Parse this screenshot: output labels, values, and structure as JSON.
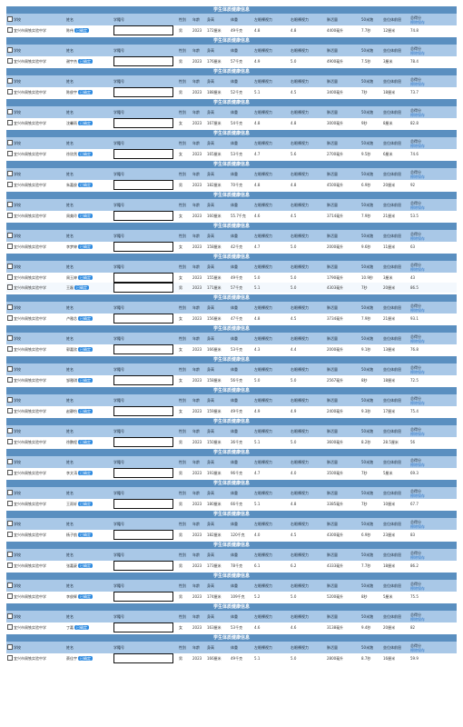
{
  "title": "学生体质健康信息",
  "headers": {
    "school": "学校",
    "name": "姓名",
    "idno": "学籍号",
    "gender": "性别",
    "age": "年龄",
    "height": "身高",
    "weight": "体重",
    "vis_l": "左眼裸视力",
    "vis_r": "右眼裸视力",
    "lung": "肺活量",
    "run50": "50米跑",
    "jump": "坐位体前屈",
    "total": "总得分",
    "link": "擦除保存"
  },
  "badge": "已确定",
  "blocks": [
    {
      "rows": [
        {
          "school": "宜兴市周铁实验中学",
          "name": "陈伟",
          "gender": "男",
          "age": "2023",
          "height": "172厘米",
          "weight": "49千克",
          "vl": "4.8",
          "vr": "4.8",
          "lung": "4400毫升",
          "run": "7.7秒",
          "jump": "12厘米",
          "total": "74.8"
        }
      ]
    },
    {
      "rows": [
        {
          "school": "宜兴市周铁实验中学",
          "name": "谢宇杰",
          "gender": "男",
          "age": "2023",
          "height": "176厘米",
          "weight": "57千克",
          "vl": "4.9",
          "vr": "5.0",
          "lung": "4900毫升",
          "run": "7.5秒",
          "jump": "3厘米",
          "total": "78.4"
        }
      ]
    },
    {
      "rows": [
        {
          "school": "宜兴市周铁实验中学",
          "name": "陈俊宇",
          "gender": "男",
          "age": "2023",
          "height": "188厘米",
          "weight": "52千克",
          "vl": "5.1",
          "vr": "4.5",
          "lung": "3400毫升",
          "run": "7秒",
          "jump": "18厘米",
          "total": "73.7"
        }
      ]
    },
    {
      "rows": [
        {
          "school": "宜兴市周铁实验中学",
          "name": "沈馨雨",
          "gender": "女",
          "age": "2023",
          "height": "167厘米",
          "weight": "54千克",
          "vl": "4.8",
          "vr": "4.8",
          "lung": "3000毫升",
          "run": "9秒",
          "jump": "8厘米",
          "total": "82.8"
        }
      ]
    },
    {
      "rows": [
        {
          "school": "宜兴市周铁实验中学",
          "name": "徐欣然",
          "gender": "女",
          "age": "2023",
          "height": "165厘米",
          "weight": "53千克",
          "vl": "4.7",
          "vr": "5.6",
          "lung": "2700毫升",
          "run": "9.5秒",
          "jump": "6厘米",
          "total": "74.6"
        }
      ]
    },
    {
      "rows": [
        {
          "school": "宜兴市周铁实验中学",
          "name": "朱嘉俊",
          "gender": "男",
          "age": "2023",
          "height": "182厘米",
          "weight": "70千克",
          "vl": "4.8",
          "vr": "4.8",
          "lung": "4500毫升",
          "run": "6.9秒",
          "jump": "20厘米",
          "total": "92"
        }
      ]
    },
    {
      "rows": [
        {
          "school": "宜兴市周铁实验中学",
          "name": "周美玲",
          "gender": "女",
          "age": "2023",
          "height": "160厘米",
          "weight": "55.7千克",
          "vl": "4.6",
          "vr": "4.5",
          "lung": "3714毫升",
          "run": "7.9秒",
          "jump": "21厘米",
          "total": "53.5"
        }
      ]
    },
    {
      "rows": [
        {
          "school": "宜兴市周铁实验中学",
          "name": "李梦婷",
          "gender": "女",
          "age": "2023",
          "height": "158厘米",
          "weight": "42千克",
          "vl": "4.7",
          "vr": "5.0",
          "lung": "2000毫升",
          "run": "9.6秒",
          "jump": "11厘米",
          "total": "63"
        }
      ]
    },
    {
      "rows": [
        {
          "school": "宜兴市周铁实验中学",
          "name": "周玉婷",
          "gender": "女",
          "age": "2023",
          "height": "155厘米",
          "weight": "49千克",
          "vl": "5.0",
          "vr": "5.0",
          "lung": "1790毫升",
          "run": "10.9秒",
          "jump": "3厘米",
          "total": "43"
        },
        {
          "school": "宜兴市周铁实验中学",
          "name": "王磊",
          "gender": "男",
          "age": "2023",
          "height": "171厘米",
          "weight": "57千克",
          "vl": "5.1",
          "vr": "5.0",
          "lung": "4303毫升",
          "run": "7秒",
          "jump": "20厘米",
          "total": "86.5"
        }
      ]
    },
    {
      "rows": [
        {
          "school": "宜兴市周铁实验中学",
          "name": "卢雅芯",
          "gender": "女",
          "age": "2023",
          "height": "156厘米",
          "weight": "47千克",
          "vl": "4.8",
          "vr": "4.5",
          "lung": "3734毫升",
          "run": "7.9秒",
          "jump": "21厘米",
          "total": "93.1"
        }
      ]
    },
    {
      "rows": [
        {
          "school": "宜兴市周铁实验中学",
          "name": "郭嘉欣",
          "gender": "女",
          "age": "2023",
          "height": "166厘米",
          "weight": "53千克",
          "vl": "4.3",
          "vr": "4.4",
          "lung": "2000毫升",
          "run": "9.1秒",
          "jump": "13厘米",
          "total": "76.8"
        }
      ]
    },
    {
      "rows": [
        {
          "school": "宜兴市周铁实验中学",
          "name": "邹雅琪",
          "gender": "女",
          "age": "2023",
          "height": "158厘米",
          "weight": "56千克",
          "vl": "5.0",
          "vr": "5.0",
          "lung": "2567毫升",
          "run": "8秒",
          "jump": "18厘米",
          "total": "72.5"
        }
      ]
    },
    {
      "rows": [
        {
          "school": "宜兴市周铁实验中学",
          "name": "赵静怡",
          "gender": "女",
          "age": "2023",
          "height": "159厘米",
          "weight": "49千克",
          "vl": "4.9",
          "vr": "4.9",
          "lung": "2400毫升",
          "run": "9.3秒",
          "jump": "17厘米",
          "total": "75.4"
        }
      ]
    },
    {
      "rows": [
        {
          "school": "宜兴市周铁实验中学",
          "name": "徐鹏程",
          "gender": "男",
          "age": "2023",
          "height": "150厘米",
          "weight": "36千克",
          "vl": "5.1",
          "vr": "5.0",
          "lung": "3600毫升",
          "run": "8.2秒",
          "jump": "28.5厘米",
          "total": "56"
        }
      ]
    },
    {
      "rows": [
        {
          "school": "宜兴市周铁实验中学",
          "name": "李文涛",
          "gender": "男",
          "age": "2023",
          "height": "193厘米",
          "weight": "96千克",
          "vl": "4.7",
          "vr": "4.0",
          "lung": "3500毫升",
          "run": "7秒",
          "jump": "5厘米",
          "total": "69.3"
        }
      ]
    },
    {
      "rows": [
        {
          "school": "宜兴市周铁实验中学",
          "name": "王雨轩",
          "gender": "男",
          "age": "2023",
          "height": "180厘米",
          "weight": "66千克",
          "vl": "5.1",
          "vr": "4.8",
          "lung": "3385毫升",
          "run": "7秒",
          "jump": "10厘米",
          "total": "67.7"
        }
      ]
    },
    {
      "rows": [
        {
          "school": "宜兴市周铁实验中学",
          "name": "杨子航",
          "gender": "男",
          "age": "2023",
          "height": "182厘米",
          "weight": "120千克",
          "vl": "4.0",
          "vr": "4.5",
          "lung": "4300毫升",
          "run": "6.9秒",
          "jump": "23厘米",
          "total": "83"
        }
      ]
    },
    {
      "rows": [
        {
          "school": "宜兴市周铁实验中学",
          "name": "张嘉豪",
          "gender": "男",
          "age": "2023",
          "height": "173厘米",
          "weight": "78千克",
          "vl": "6.1",
          "vr": "6.2",
          "lung": "4333毫升",
          "run": "7.7秒",
          "jump": "18厘米",
          "total": "86.2"
        }
      ]
    },
    {
      "rows": [
        {
          "school": "宜兴市周铁实验中学",
          "name": "李俊辉",
          "gender": "男",
          "age": "2023",
          "height": "174厘米",
          "weight": "109千克",
          "vl": "5.2",
          "vr": "5.0",
          "lung": "5200毫升",
          "run": "8秒",
          "jump": "5厘米",
          "total": "75.5"
        }
      ]
    },
    {
      "rows": [
        {
          "school": "宜兴市周铁实验中学",
          "name": "丁嘉",
          "gender": "女",
          "age": "2023",
          "height": "163厘米",
          "weight": "53千克",
          "vl": "4.6",
          "vr": "4.6",
          "lung": "3138毫升",
          "run": "9.4秒",
          "jump": "20厘米",
          "total": "82"
        }
      ]
    },
    {
      "rows": [
        {
          "school": "宜兴市周铁实验中学",
          "name": "蔡佳宇",
          "gender": "男",
          "age": "2023",
          "height": "166厘米",
          "weight": "49千克",
          "vl": "5.1",
          "vr": "5.0",
          "lung": "2800毫升",
          "run": "8.7秒",
          "jump": "16厘米",
          "total": "59.9"
        }
      ]
    }
  ]
}
